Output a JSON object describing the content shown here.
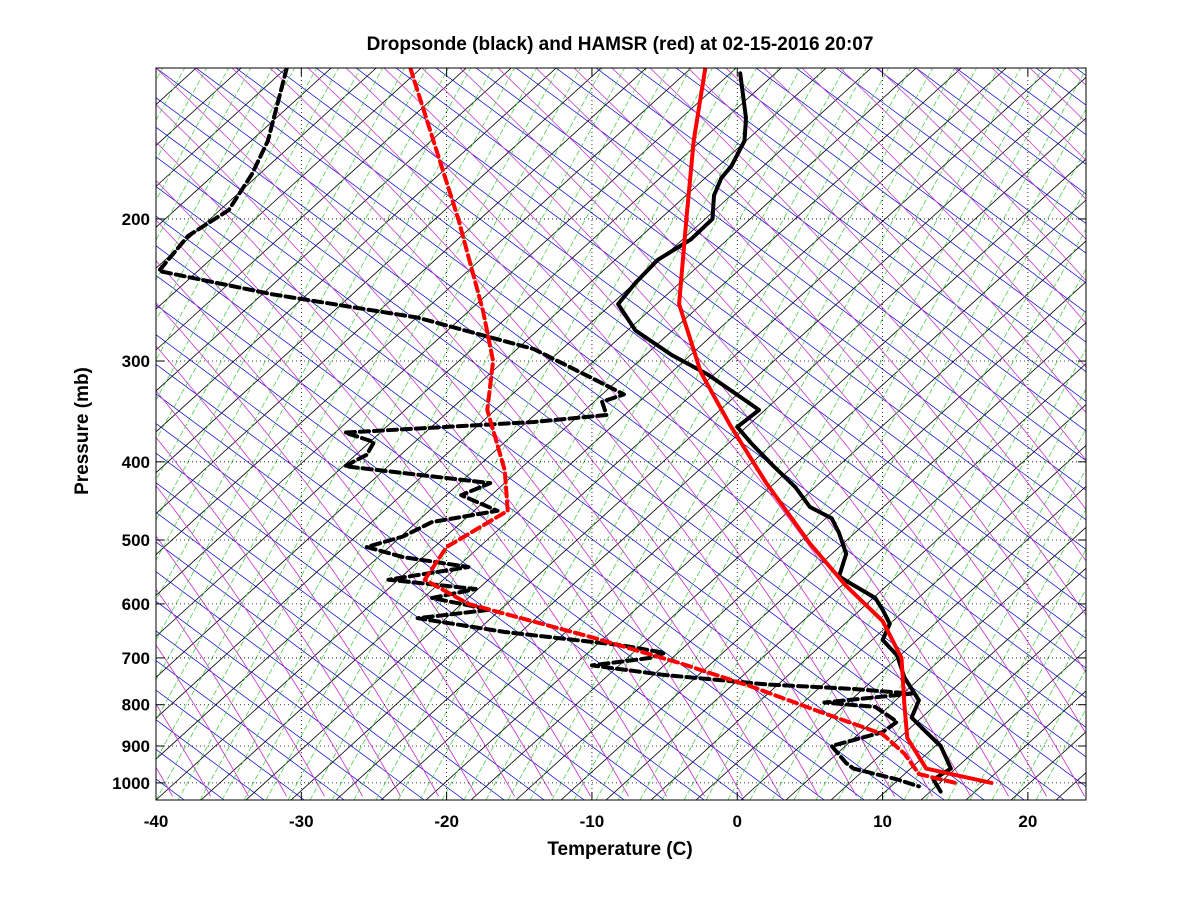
{
  "chart_data": {
    "type": "line",
    "title": "Dropsonde (black) and HAMSR (red) at 02-15-2016 20:07",
    "xlabel": "Temperature (C)",
    "ylabel": "Pressure (mb)",
    "xlim": [
      -40,
      24
    ],
    "ylim": [
      1050,
      130
    ],
    "y_scale": "log",
    "y_reversed": true,
    "grid": "dotted",
    "x_ticks": [
      -40,
      -30,
      -20,
      -10,
      0,
      10,
      20
    ],
    "y_ticks": [
      200,
      300,
      400,
      500,
      600,
      700,
      800,
      900,
      1000
    ],
    "background_lines": {
      "skewed_isotherms": "#000000",
      "dry_adiabats": "#0000cc",
      "moist_adiabats": "#cc33cc",
      "mixing_ratio": "#33cc33"
    },
    "series": [
      {
        "color": "#000000",
        "style": "solid",
        "points": [
          [
            0.2,
            132
          ],
          [
            0.6,
            150
          ],
          [
            0.5,
            160
          ],
          [
            -0.4,
            172
          ],
          [
            -1.1,
            178
          ],
          [
            -1.6,
            187
          ],
          [
            -1.7,
            200
          ],
          [
            -3.2,
            212
          ],
          [
            -5.5,
            225
          ],
          [
            -7,
            240
          ],
          [
            -8.2,
            255
          ],
          [
            -7,
            275
          ],
          [
            -4.5,
            295
          ],
          [
            -2,
            312
          ],
          [
            1,
            340
          ],
          [
            1.5,
            345
          ],
          [
            0,
            362
          ],
          [
            1,
            380
          ],
          [
            2.5,
            405
          ],
          [
            4,
            430
          ],
          [
            5,
            455
          ],
          [
            6.5,
            470
          ],
          [
            7,
            490
          ],
          [
            7.5,
            520
          ],
          [
            7,
            555
          ],
          [
            9.5,
            590
          ],
          [
            10,
            610
          ],
          [
            10.5,
            635
          ],
          [
            10,
            665
          ],
          [
            11,
            695
          ],
          [
            11.5,
            740
          ],
          [
            12.5,
            790
          ],
          [
            12,
            830
          ],
          [
            13,
            865
          ],
          [
            14,
            900
          ],
          [
            14.7,
            960
          ],
          [
            13.5,
            990
          ],
          [
            14,
            1025
          ]
        ]
      },
      {
        "color": "#000000",
        "style": "dashed",
        "points": [
          [
            -31,
            130
          ],
          [
            -32.3,
            160
          ],
          [
            -33.4,
            176
          ],
          [
            -35,
            195
          ],
          [
            -37.8,
            210
          ],
          [
            -39.8,
            232
          ],
          [
            -32,
            248
          ],
          [
            -22,
            265
          ],
          [
            -14,
            290
          ],
          [
            -10,
            315
          ],
          [
            -7.8,
            330
          ],
          [
            -9.3,
            337
          ],
          [
            -9,
            350
          ],
          [
            -14,
            357
          ],
          [
            -20,
            362
          ],
          [
            -27,
            368
          ],
          [
            -25,
            378
          ],
          [
            -25.5,
            392
          ],
          [
            -27,
            405
          ],
          [
            -22,
            415
          ],
          [
            -17,
            425
          ],
          [
            -19,
            440
          ],
          [
            -16.5,
            460
          ],
          [
            -21,
            475
          ],
          [
            -23,
            495
          ],
          [
            -25.5,
            510
          ],
          [
            -23,
            525
          ],
          [
            -18.5,
            540
          ],
          [
            -24,
            560
          ],
          [
            -18,
            575
          ],
          [
            -21,
            590
          ],
          [
            -17,
            610
          ],
          [
            -22,
            625
          ],
          [
            -16,
            650
          ],
          [
            -8,
            675
          ],
          [
            -5,
            690
          ],
          [
            -6,
            700
          ],
          [
            -10,
            715
          ],
          [
            -5,
            735
          ],
          [
            2,
            755
          ],
          [
            8,
            765
          ],
          [
            12,
            775
          ],
          [
            6,
            795
          ],
          [
            9.5,
            805
          ],
          [
            11,
            840
          ],
          [
            10,
            865
          ],
          [
            6.5,
            900
          ],
          [
            7.5,
            945
          ],
          [
            8,
            960
          ],
          [
            11,
            990
          ],
          [
            12.5,
            1010
          ]
        ]
      },
      {
        "color": "#ff0000",
        "style": "solid",
        "points": [
          [
            -2.2,
            130
          ],
          [
            -3,
            160
          ],
          [
            -3.5,
            200
          ],
          [
            -4,
            255
          ],
          [
            -2.5,
            310
          ],
          [
            -0.5,
            360
          ],
          [
            2,
            425
          ],
          [
            5,
            505
          ],
          [
            7.5,
            570
          ],
          [
            10,
            630
          ],
          [
            11.3,
            700
          ],
          [
            11.5,
            800
          ],
          [
            11.7,
            880
          ],
          [
            13,
            960
          ],
          [
            17.5,
            1000
          ]
        ]
      },
      {
        "color": "#ff0000",
        "style": "dashed",
        "points": [
          [
            -22.5,
            130
          ],
          [
            -19.2,
            200
          ],
          [
            -17.5,
            260
          ],
          [
            -16.8,
            300
          ],
          [
            -17.2,
            345
          ],
          [
            -16,
            410
          ],
          [
            -15.8,
            460
          ],
          [
            -20,
            510
          ],
          [
            -21.5,
            560
          ],
          [
            -18.5,
            600
          ],
          [
            -10,
            660
          ],
          [
            -4,
            710
          ],
          [
            1,
            760
          ],
          [
            6,
            820
          ],
          [
            10,
            870
          ],
          [
            11.5,
            920
          ],
          [
            12.5,
            975
          ],
          [
            15,
            1000
          ]
        ]
      }
    ]
  }
}
